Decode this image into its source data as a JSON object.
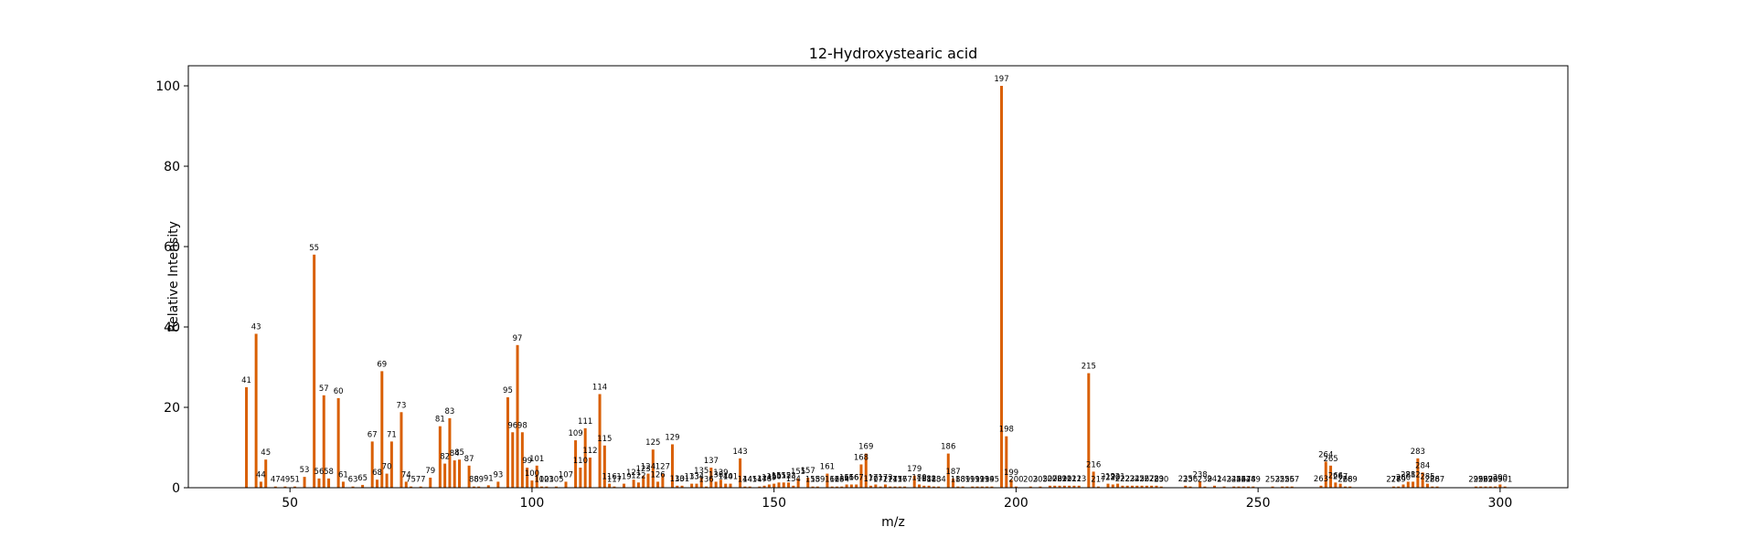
{
  "chart_data": {
    "type": "bar",
    "title": "12-Hydroxystearic acid",
    "xlabel": "m/z",
    "ylabel": "Relative Intensity",
    "xlim": [
      29,
      314
    ],
    "ylim": [
      0,
      105
    ],
    "xticks": [
      50,
      100,
      150,
      200,
      250,
      300
    ],
    "yticks": [
      0,
      20,
      40,
      60,
      80,
      100
    ],
    "bar_color": "#d95f02",
    "grid": false,
    "legend": "none",
    "peaks": [
      {
        "x": 41,
        "y": 25
      },
      {
        "x": 43,
        "y": 38.3
      },
      {
        "x": 44,
        "y": 1.5
      },
      {
        "x": 45,
        "y": 7
      },
      {
        "x": 47,
        "y": 0.3
      },
      {
        "x": 49,
        "y": 0.3
      },
      {
        "x": 51,
        "y": 0.3
      },
      {
        "x": 53,
        "y": 2.7
      },
      {
        "x": 55,
        "y": 58
      },
      {
        "x": 56,
        "y": 2.3
      },
      {
        "x": 57,
        "y": 23
      },
      {
        "x": 58,
        "y": 2.3
      },
      {
        "x": 60,
        "y": 22.3
      },
      {
        "x": 61,
        "y": 1.5
      },
      {
        "x": 63,
        "y": 0.3
      },
      {
        "x": 65,
        "y": 0.7
      },
      {
        "x": 67,
        "y": 11.5
      },
      {
        "x": 68,
        "y": 2
      },
      {
        "x": 69,
        "y": 29
      },
      {
        "x": 70,
        "y": 3.5
      },
      {
        "x": 71,
        "y": 11.5
      },
      {
        "x": 73,
        "y": 18.8
      },
      {
        "x": 74,
        "y": 1.5
      },
      {
        "x": 75,
        "y": 0.3
      },
      {
        "x": 77,
        "y": 0.3
      },
      {
        "x": 79,
        "y": 2.5
      },
      {
        "x": 81,
        "y": 15.3
      },
      {
        "x": 82,
        "y": 6
      },
      {
        "x": 83,
        "y": 17.3
      },
      {
        "x": 84,
        "y": 6.8
      },
      {
        "x": 85,
        "y": 7
      },
      {
        "x": 87,
        "y": 5.5
      },
      {
        "x": 88,
        "y": 0.3
      },
      {
        "x": 89,
        "y": 0.3
      },
      {
        "x": 91,
        "y": 0.6
      },
      {
        "x": 93,
        "y": 1.5
      },
      {
        "x": 95,
        "y": 22.5
      },
      {
        "x": 96,
        "y": 13.8
      },
      {
        "x": 97,
        "y": 35.5
      },
      {
        "x": 98,
        "y": 13.8
      },
      {
        "x": 99,
        "y": 5
      },
      {
        "x": 100,
        "y": 1.8
      },
      {
        "x": 101,
        "y": 5.5
      },
      {
        "x": 102,
        "y": 0.3
      },
      {
        "x": 103,
        "y": 0.3
      },
      {
        "x": 105,
        "y": 0.3
      },
      {
        "x": 107,
        "y": 1.5
      },
      {
        "x": 109,
        "y": 11.8
      },
      {
        "x": 110,
        "y": 5
      },
      {
        "x": 111,
        "y": 14.8
      },
      {
        "x": 112,
        "y": 7.5
      },
      {
        "x": 114,
        "y": 23.3
      },
      {
        "x": 115,
        "y": 10.5
      },
      {
        "x": 116,
        "y": 1
      },
      {
        "x": 117,
        "y": 0.3
      },
      {
        "x": 119,
        "y": 1
      },
      {
        "x": 121,
        "y": 2
      },
      {
        "x": 122,
        "y": 1.3
      },
      {
        "x": 123,
        "y": 3
      },
      {
        "x": 124,
        "y": 3.5
      },
      {
        "x": 125,
        "y": 9.5
      },
      {
        "x": 126,
        "y": 1.5
      },
      {
        "x": 127,
        "y": 3.5
      },
      {
        "x": 129,
        "y": 10.8
      },
      {
        "x": 130,
        "y": 0.5
      },
      {
        "x": 131,
        "y": 0.5
      },
      {
        "x": 133,
        "y": 1
      },
      {
        "x": 134,
        "y": 1
      },
      {
        "x": 135,
        "y": 2.5
      },
      {
        "x": 136,
        "y": 0.3
      },
      {
        "x": 137,
        "y": 5
      },
      {
        "x": 138,
        "y": 1.5
      },
      {
        "x": 139,
        "y": 2
      },
      {
        "x": 140,
        "y": 1
      },
      {
        "x": 141,
        "y": 1
      },
      {
        "x": 143,
        "y": 7.3
      },
      {
        "x": 144,
        "y": 0.3
      },
      {
        "x": 145,
        "y": 0.3
      },
      {
        "x": 147,
        "y": 0.3
      },
      {
        "x": 148,
        "y": 0.5
      },
      {
        "x": 149,
        "y": 0.8
      },
      {
        "x": 150,
        "y": 1
      },
      {
        "x": 151,
        "y": 1.3
      },
      {
        "x": 152,
        "y": 1.3
      },
      {
        "x": 153,
        "y": 1.3
      },
      {
        "x": 154,
        "y": 0.5
      },
      {
        "x": 155,
        "y": 2.3
      },
      {
        "x": 157,
        "y": 2.5
      },
      {
        "x": 158,
        "y": 0.3
      },
      {
        "x": 159,
        "y": 0.3
      },
      {
        "x": 161,
        "y": 3.5
      },
      {
        "x": 162,
        "y": 0.3
      },
      {
        "x": 163,
        "y": 0.3
      },
      {
        "x": 164,
        "y": 0.3
      },
      {
        "x": 165,
        "y": 0.8
      },
      {
        "x": 166,
        "y": 0.8
      },
      {
        "x": 167,
        "y": 0.8
      },
      {
        "x": 168,
        "y": 5.8
      },
      {
        "x": 169,
        "y": 8.5
      },
      {
        "x": 170,
        "y": 0.5
      },
      {
        "x": 171,
        "y": 0.8
      },
      {
        "x": 172,
        "y": 0.3
      },
      {
        "x": 173,
        "y": 0.8
      },
      {
        "x": 174,
        "y": 0.3
      },
      {
        "x": 175,
        "y": 0.3
      },
      {
        "x": 176,
        "y": 0.3
      },
      {
        "x": 177,
        "y": 0.3
      },
      {
        "x": 179,
        "y": 3
      },
      {
        "x": 180,
        "y": 0.8
      },
      {
        "x": 181,
        "y": 0.5
      },
      {
        "x": 182,
        "y": 0.5
      },
      {
        "x": 183,
        "y": 0.3
      },
      {
        "x": 184,
        "y": 0.3
      },
      {
        "x": 186,
        "y": 8.5
      },
      {
        "x": 187,
        "y": 2.3
      },
      {
        "x": 188,
        "y": 0.3
      },
      {
        "x": 189,
        "y": 0.3
      },
      {
        "x": 191,
        "y": 0.3
      },
      {
        "x": 192,
        "y": 0.3
      },
      {
        "x": 193,
        "y": 0.3
      },
      {
        "x": 194,
        "y": 0.3
      },
      {
        "x": 195,
        "y": 0.3
      },
      {
        "x": 197,
        "y": 100
      },
      {
        "x": 198,
        "y": 12.8
      },
      {
        "x": 199,
        "y": 2
      },
      {
        "x": 200,
        "y": 0.3
      },
      {
        "x": 203,
        "y": 0.3
      },
      {
        "x": 205,
        "y": 0.3
      },
      {
        "x": 207,
        "y": 0.5
      },
      {
        "x": 208,
        "y": 0.5
      },
      {
        "x": 209,
        "y": 0.5
      },
      {
        "x": 210,
        "y": 0.5
      },
      {
        "x": 211,
        "y": 0.5
      },
      {
        "x": 212,
        "y": 0.5
      },
      {
        "x": 213,
        "y": 0.5
      },
      {
        "x": 215,
        "y": 28.5
      },
      {
        "x": 216,
        "y": 4
      },
      {
        "x": 217,
        "y": 0.3
      },
      {
        "x": 219,
        "y": 1
      },
      {
        "x": 220,
        "y": 0.8
      },
      {
        "x": 221,
        "y": 1
      },
      {
        "x": 222,
        "y": 0.5
      },
      {
        "x": 223,
        "y": 0.5
      },
      {
        "x": 224,
        "y": 0.5
      },
      {
        "x": 225,
        "y": 0.5
      },
      {
        "x": 226,
        "y": 0.5
      },
      {
        "x": 227,
        "y": 0.5
      },
      {
        "x": 228,
        "y": 0.5
      },
      {
        "x": 229,
        "y": 0.5
      },
      {
        "x": 230,
        "y": 0.3
      },
      {
        "x": 235,
        "y": 0.5
      },
      {
        "x": 236,
        "y": 0.3
      },
      {
        "x": 238,
        "y": 1.5
      },
      {
        "x": 239,
        "y": 0.3
      },
      {
        "x": 241,
        "y": 0.5
      },
      {
        "x": 243,
        "y": 0.3
      },
      {
        "x": 245,
        "y": 0.3
      },
      {
        "x": 246,
        "y": 0.3
      },
      {
        "x": 247,
        "y": 0.3
      },
      {
        "x": 248,
        "y": 0.3
      },
      {
        "x": 249,
        "y": 0.3
      },
      {
        "x": 253,
        "y": 0.3
      },
      {
        "x": 255,
        "y": 0.3
      },
      {
        "x": 256,
        "y": 0.3
      },
      {
        "x": 257,
        "y": 0.3
      },
      {
        "x": 263,
        "y": 0.5
      },
      {
        "x": 264,
        "y": 6.5
      },
      {
        "x": 265,
        "y": 5.5
      },
      {
        "x": 266,
        "y": 1.3
      },
      {
        "x": 267,
        "y": 1
      },
      {
        "x": 268,
        "y": 0.3
      },
      {
        "x": 269,
        "y": 0.3
      },
      {
        "x": 278,
        "y": 0.3
      },
      {
        "x": 279,
        "y": 0.3
      },
      {
        "x": 280,
        "y": 0.8
      },
      {
        "x": 281,
        "y": 1.5
      },
      {
        "x": 282,
        "y": 1.5
      },
      {
        "x": 283,
        "y": 7.3
      },
      {
        "x": 284,
        "y": 3.8
      },
      {
        "x": 285,
        "y": 1
      },
      {
        "x": 286,
        "y": 0.3
      },
      {
        "x": 287,
        "y": 0.3
      },
      {
        "x": 295,
        "y": 0.3
      },
      {
        "x": 296,
        "y": 0.3
      },
      {
        "x": 297,
        "y": 0.3
      },
      {
        "x": 298,
        "y": 0.3
      },
      {
        "x": 299,
        "y": 0.3
      },
      {
        "x": 300,
        "y": 0.8
      },
      {
        "x": 301,
        "y": 0.3
      }
    ]
  }
}
